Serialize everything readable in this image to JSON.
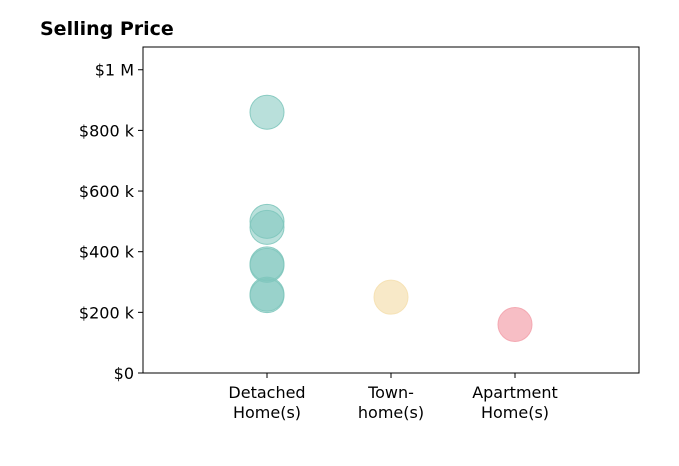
{
  "chart_data": {
    "type": "scatter",
    "title": "Selling Price",
    "xlabel": "",
    "ylabel": "",
    "categories": [
      [
        "Detached",
        "Home(s)"
      ],
      [
        "Town-",
        "home(s)"
      ],
      [
        "Apartment",
        "Home(s)"
      ]
    ],
    "yticks": [
      {
        "value": 0,
        "label": "$0"
      },
      {
        "value": 200000,
        "label": "$200 k"
      },
      {
        "value": 400000,
        "label": "$400 k"
      },
      {
        "value": 600000,
        "label": "$600 k"
      },
      {
        "value": 800000,
        "label": "$800 k"
      },
      {
        "value": 1000000,
        "label": "$1 M"
      }
    ],
    "ylim": [
      0,
      1075000
    ],
    "xlim": [
      -1,
      3
    ],
    "grid": false,
    "legend": "none",
    "series": [
      {
        "category_index": 0,
        "color": "#80c6bd",
        "opacity": 0.55,
        "values": [
          860000,
          500000,
          480000,
          360000,
          355000,
          260000,
          255000
        ]
      },
      {
        "category_index": 1,
        "color": "#f5e0b0",
        "opacity": 0.7,
        "values": [
          250000
        ]
      },
      {
        "category_index": 2,
        "color": "#f3a3ad",
        "opacity": 0.7,
        "values": [
          160000
        ]
      }
    ]
  }
}
